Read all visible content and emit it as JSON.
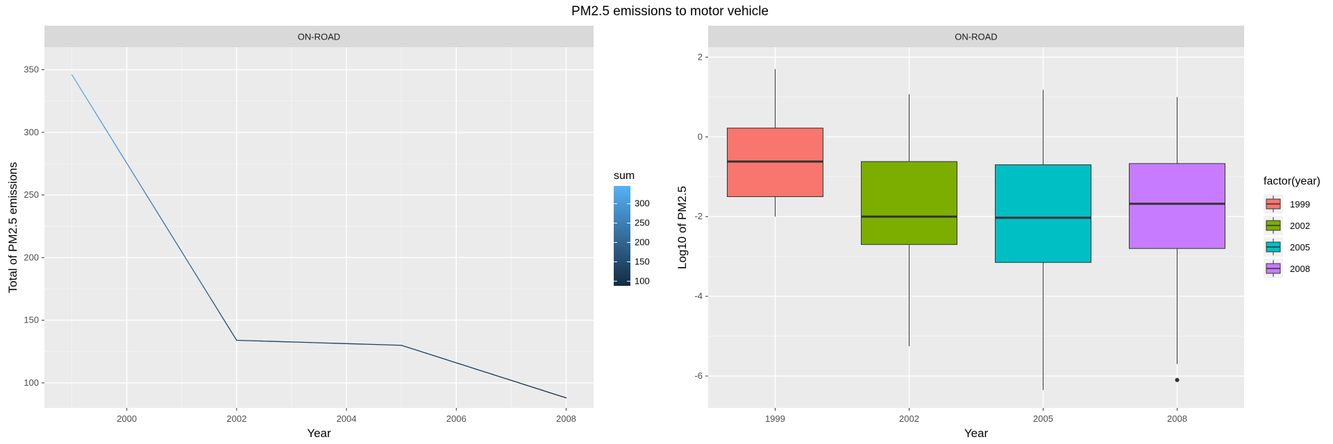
{
  "title": "PM2.5 emissions to motor vehicle",
  "chart_data": [
    {
      "type": "line",
      "facet": "ON-ROAD",
      "xlabel": "Year",
      "ylabel": "Total of PM2.5 emissions",
      "x": [
        1999,
        2002,
        2005,
        2008
      ],
      "y": [
        346,
        134,
        130,
        88
      ],
      "xlim": [
        1998.5,
        2008.5
      ],
      "ylim": [
        80,
        368
      ],
      "xticks": [
        "2000",
        "2002",
        "2004",
        "2006",
        "2008"
      ],
      "yticks": [
        "100",
        "150",
        "200",
        "250",
        "300",
        "350"
      ],
      "grid": true,
      "colorbar": {
        "title": "sum",
        "ticks": [
          "100",
          "150",
          "200",
          "250",
          "300"
        ],
        "range": [
          88,
          346
        ],
        "low_color": "#132b43",
        "high_color": "#56b1f7"
      }
    },
    {
      "type": "box",
      "facet": "ON-ROAD",
      "xlabel": "Year",
      "ylabel": "Log10 of PM2.5",
      "categories": [
        "1999",
        "2002",
        "2005",
        "2008"
      ],
      "ylim": [
        -6.8,
        2.25
      ],
      "yticks": [
        "-6",
        "-4",
        "-2",
        "0",
        "2"
      ],
      "grid": true,
      "boxes": [
        {
          "category": "1999",
          "whisker_low": -2.0,
          "q1": -1.5,
          "median": -0.62,
          "q3": 0.22,
          "whisker_high": 1.7,
          "outliers": [],
          "color": "#f8766d"
        },
        {
          "category": "2002",
          "whisker_low": -5.25,
          "q1": -2.7,
          "median": -2.0,
          "q3": -0.62,
          "whisker_high": 1.07,
          "outliers": [],
          "color": "#7cae00"
        },
        {
          "category": "2005",
          "whisker_low": -6.35,
          "q1": -3.15,
          "median": -2.03,
          "q3": -0.7,
          "whisker_high": 1.18,
          "outliers": [],
          "color": "#00bfc4"
        },
        {
          "category": "2008",
          "whisker_low": -5.7,
          "q1": -2.8,
          "median": -1.68,
          "q3": -0.67,
          "whisker_high": 1.0,
          "outliers": [
            -6.1
          ],
          "color": "#c77cff"
        }
      ],
      "legend": {
        "title": "factor(year)",
        "position": "right",
        "items": [
          {
            "label": "1999",
            "color": "#f8766d"
          },
          {
            "label": "2002",
            "color": "#7cae00"
          },
          {
            "label": "2005",
            "color": "#00bfc4"
          },
          {
            "label": "2008",
            "color": "#c77cff"
          }
        ]
      }
    }
  ]
}
